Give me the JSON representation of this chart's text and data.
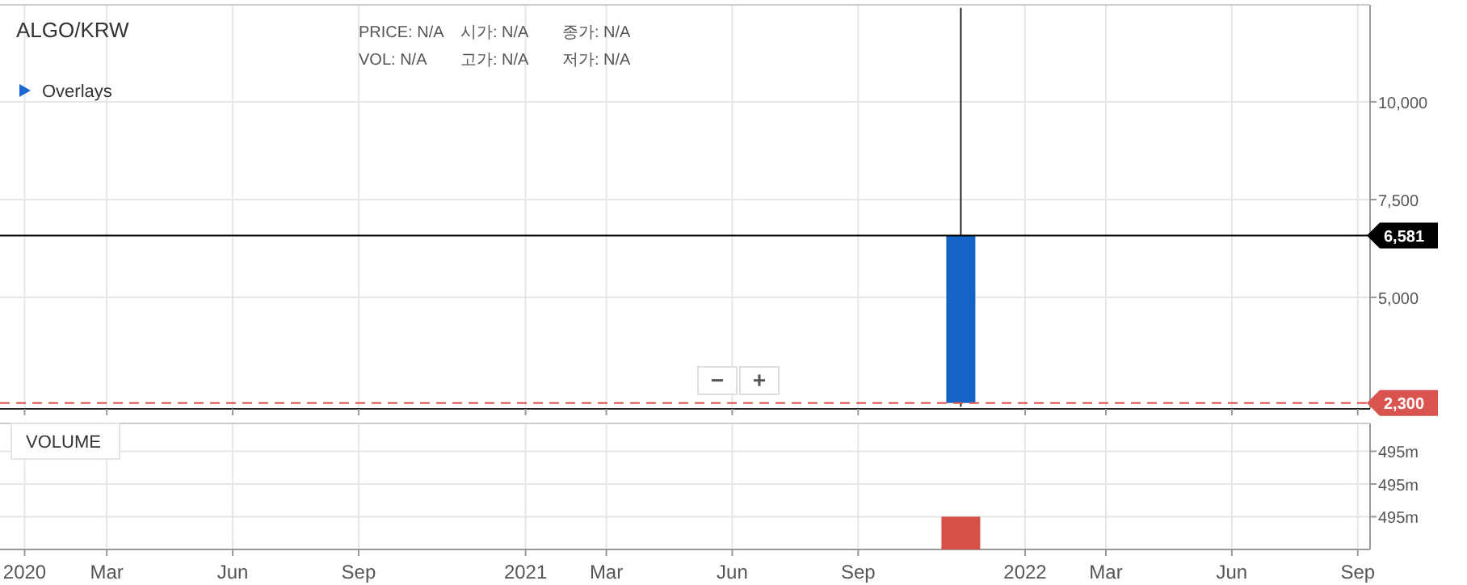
{
  "chart_data": [
    {
      "type": "candlestick",
      "title": "ALGO/KRW",
      "annotations": [
        "PRICE: N/A",
        "시가: N/A",
        "종가: N/A",
        "VOL: N/A",
        "고가: N/A",
        "저가: N/A",
        "Overlays",
        "−",
        "+"
      ],
      "x": [
        "2021-11-15"
      ],
      "ohlc": [
        [
          6581,
          12400,
          2200,
          2300
        ]
      ],
      "color": "#1464c8",
      "xlim": [
        "2019-12-14",
        "2022-09-10"
      ],
      "ylim": [
        2150,
        12480
      ],
      "yticks": [
        {
          "value": 5000,
          "label": "5,000"
        },
        {
          "value": 7500,
          "label": "7,500"
        },
        {
          "value": 10000,
          "label": "10,000"
        }
      ],
      "xticks": [
        "2020-01-01",
        "2020-03-01",
        "2020-06-01",
        "2020-09-01",
        "2021-01-01",
        "2021-03-01",
        "2021-06-01",
        "2021-09-01",
        "2022-01-01",
        "2022-03-01",
        "2022-06-01",
        "2022-09-01"
      ],
      "ref_lines": [
        {
          "axis": "y",
          "value": 6581,
          "label": "6,581",
          "color": "#000000",
          "line_style": "solid"
        },
        {
          "axis": "y",
          "value": 2300,
          "label": "2,300",
          "color": "#d9534f",
          "line_style": "dashed"
        }
      ],
      "grid": true,
      "tick_labels": "y"
    },
    {
      "type": "bar",
      "title": "VOLUME",
      "x": [
        "2021-11-15"
      ],
      "values": [
        495.0
      ],
      "color": "#d65045",
      "xlim": [
        "2019-12-14",
        "2022-09-10"
      ],
      "ylim": [
        494.998,
        495.0057
      ],
      "yticks": [
        {
          "value": 495.0,
          "label": "495m"
        },
        {
          "value": 495.002,
          "label": "495m"
        },
        {
          "value": 495.004,
          "label": "495m"
        }
      ],
      "xticks": [
        {
          "value": "2020-01-01",
          "label": "2020"
        },
        {
          "value": "2020-03-01",
          "label": "Mar"
        },
        {
          "value": "2020-06-01",
          "label": "Jun"
        },
        {
          "value": "2020-09-01",
          "label": "Sep"
        },
        {
          "value": "2021-01-01",
          "label": "2021"
        },
        {
          "value": "2021-03-01",
          "label": "Mar"
        },
        {
          "value": "2021-06-01",
          "label": "Jun"
        },
        {
          "value": "2021-09-01",
          "label": "Sep"
        },
        {
          "value": "2022-01-01",
          "label": "2022"
        },
        {
          "value": "2022-03-01",
          "label": "Mar"
        },
        {
          "value": "2022-06-01",
          "label": "Jun"
        },
        {
          "value": "2022-09-01",
          "label": "Sep"
        }
      ],
      "grid": true
    }
  ]
}
